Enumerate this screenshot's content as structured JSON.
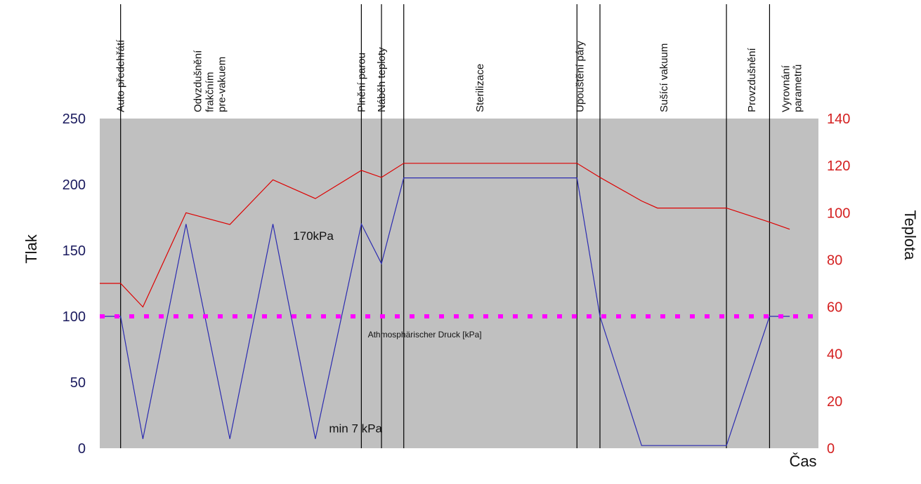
{
  "chart_data": {
    "type": "line",
    "title": "",
    "xlabel": "Čas",
    "ylabel_left": "Tlak",
    "ylabel_right": "Teplota",
    "ylim_left": [
      0,
      250
    ],
    "ylim_right": [
      0,
      140
    ],
    "yticks_left": [
      0,
      50,
      100,
      150,
      200,
      250
    ],
    "yticks_right": [
      0,
      20,
      40,
      60,
      80,
      100,
      120,
      140
    ],
    "xlim": [
      0,
      100
    ],
    "grid": false,
    "background": "gray",
    "phases": [
      {
        "label": "Auto předehřátí",
        "x": 2.9
      },
      {
        "label": "Odvzdušnění frakčním pre-vakuem",
        "x": 15.3
      },
      {
        "label": "Plnění parou",
        "x": 36.4
      },
      {
        "label": "Náběh teploty",
        "x": 39.2
      },
      {
        "label": "Sterilizace",
        "x": 52.9
      },
      {
        "label": "Upouštění páry",
        "x": 66.8
      },
      {
        "label": "Sušící vakuum",
        "x": 78.5
      },
      {
        "label": "Provzdušnění",
        "x": 90.7
      },
      {
        "label": "Vyrovnání parametrů",
        "x": 96.3
      }
    ],
    "phase_lines": [
      2.9,
      36.4,
      39.2,
      42.3,
      66.4,
      69.6,
      87.2,
      93.2
    ],
    "series": [
      {
        "axis": "left",
        "color": "#2b2bb0",
        "x": [
          0,
          2.9,
          6.0,
          12.0,
          18.1,
          24.1,
          30.0,
          36.4,
          39.2,
          42.3,
          66.4,
          69.6,
          75.4,
          87.2,
          93.2,
          96.0
        ],
        "values": [
          100,
          100,
          7,
          170,
          7,
          170,
          7,
          170,
          140,
          205,
          205,
          100,
          2,
          2,
          100,
          100
        ]
      },
      {
        "axis": "right",
        "color": "#dd0000",
        "x": [
          0,
          2.9,
          6.0,
          12.0,
          18.1,
          24.1,
          30.0,
          36.4,
          39.2,
          42.3,
          66.4,
          69.6,
          75.4,
          77.6,
          87.2,
          93.2,
          96.0
        ],
        "values": [
          70,
          70,
          60,
          100,
          95,
          114,
          106,
          118,
          115,
          121,
          121,
          115,
          105,
          102,
          102,
          96,
          93
        ]
      },
      {
        "axis": "left",
        "color": "#ff00ff",
        "dashed": true,
        "x": [
          0,
          100
        ],
        "values": [
          100,
          100
        ]
      }
    ],
    "annotations": [
      {
        "text": "170kPa",
        "x": 26.9,
        "y": 158
      },
      {
        "text": "min 7 kPa",
        "x": 31.9,
        "y": 12
      },
      {
        "text": "Athmosphärischer Druck [kPa]",
        "x": 37.3,
        "y": 84,
        "small": true
      }
    ]
  }
}
